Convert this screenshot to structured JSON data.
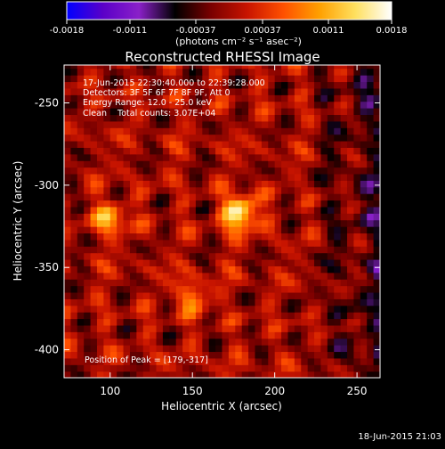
{
  "colorbar": {
    "ticks": [
      "-0.0018",
      "-0.0011",
      "-0.00037",
      "0.00037",
      "0.0011",
      "0.0018"
    ],
    "unit_label": "(photons cm⁻² s⁻¹ asec⁻²)",
    "range": [
      -0.0018,
      0.0018
    ],
    "stops": [
      "#0000ff",
      "#5a00c8",
      "#8a20c8",
      "#000000",
      "#7a0000",
      "#c81400",
      "#ff5000",
      "#ffa000",
      "#ffe060",
      "#ffffff"
    ]
  },
  "chart_data": {
    "type": "heatmap",
    "title": "Reconstructed RHESSI Image",
    "xlabel": "Heliocentric X (arcsec)",
    "ylabel": "Heliocentric Y (arcsec)",
    "xlim": [
      72,
      264
    ],
    "ylim": [
      -417,
      -227
    ],
    "xticks": [
      100,
      150,
      200,
      250
    ],
    "yticks": [
      -250,
      -300,
      -350,
      -400
    ],
    "grid": false,
    "sources": [
      {
        "x": 179,
        "y": -317,
        "peak": 0.0018
      },
      {
        "x": 100,
        "y": -320,
        "peak": 0.0011
      },
      {
        "x": 150,
        "y": -367,
        "peak": 0.0009
      }
    ],
    "peak_position": [
      179,
      -317
    ]
  },
  "annotations": {
    "time_range": "17-Jun-2015 22:30:40.000 to 22:39:28.000",
    "detectors": "Detectors: 3F 5F 6F 7F 8F 9F, Att 0",
    "energy": "Energy Range: 12.0 - 25.0 keV",
    "clean": "Clean    Total counts: 3.07E+04",
    "peak": "Position of Peak = [179,-317]"
  },
  "footer": {
    "timestamp": "18-Jun-2015 21:03"
  }
}
